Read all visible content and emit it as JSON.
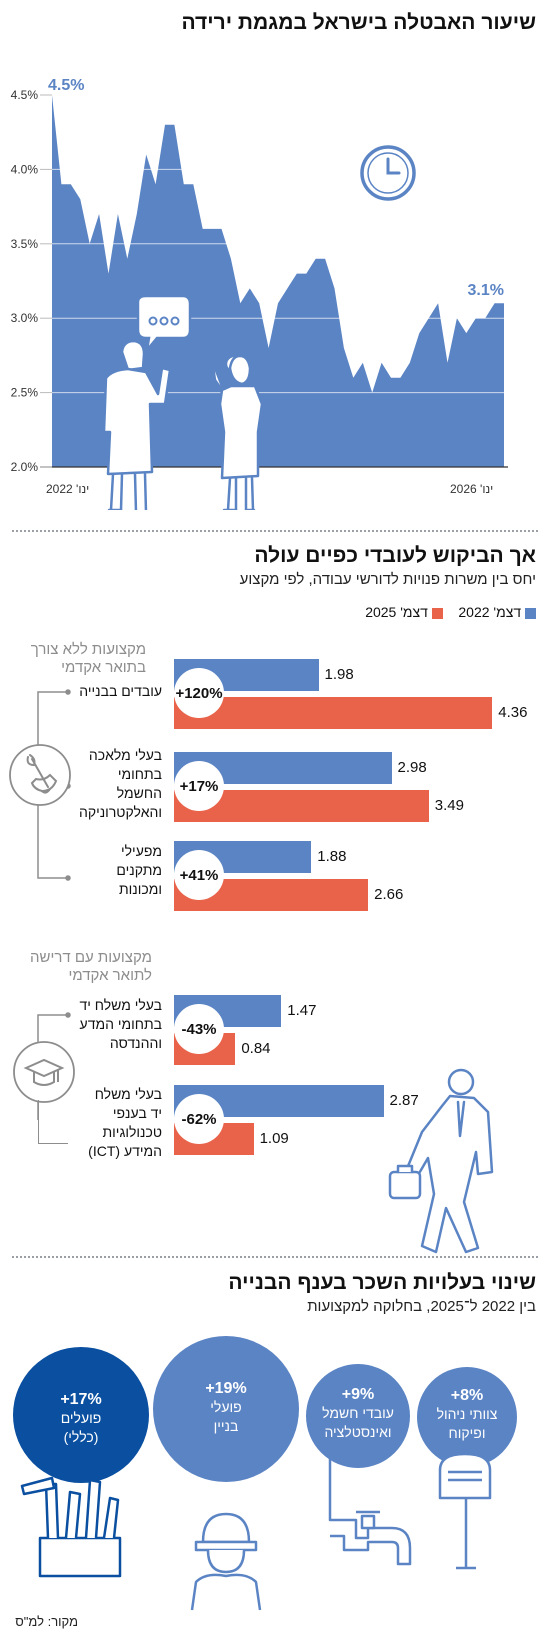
{
  "section1": {
    "title": "שיעור האבטלה בישראל במגמת ירידה",
    "start_label": "4.5%",
    "end_label": "3.1%",
    "x_start": "ינו' 2022",
    "x_end": "ינו' 2026",
    "y_ticks": [
      "4.5%",
      "4.0%",
      "3.5%",
      "3.0%",
      "2.5%",
      "2.0%"
    ]
  },
  "section2": {
    "title": "אך הביקוש לעובדי כפיים עולה",
    "subtitle": "יחס בין משרות פנויות לדורשי עבודה, לפי מקצוע",
    "legend_2022": "דצמ' 2022",
    "legend_2025": "דצמ' 2025",
    "group1_title": [
      "מקצועות ללא צורך",
      "בתואר אקדמי"
    ],
    "group2_title": [
      "מקצועות עם דרישה",
      "לתואר אקדמי"
    ],
    "cat1": [
      "עובדים בבנייה"
    ],
    "cat2": [
      "בעלי מלאכה",
      "בתחומי",
      "החשמל",
      "והאלקטרוניקה"
    ],
    "cat3": [
      "מפעילי",
      "מתקנים",
      "ומכונות"
    ],
    "cat4": [
      "בעלי משלח יד",
      "בתחומי המדע",
      "וההנדסה"
    ],
    "cat5": [
      "בעלי משלח",
      "יד בענפי",
      "טכנולוגיות",
      "המידע (ICT)"
    ]
  },
  "section3": {
    "title": "שינוי בעלויות השכר בענף הבנייה",
    "subtitle": "בין 2022 ל־2025, בחלוקה למקצועות",
    "c1_pct": "+17%",
    "c1_label": [
      "פועלים",
      "(כללי)"
    ],
    "c2_pct": "+19%",
    "c2_label": [
      "פועלי",
      "בניין"
    ],
    "c3_pct": "+9%",
    "c3_label": [
      "עובדי חשמל",
      "ואינסטלציה"
    ],
    "c4_pct": "+8%",
    "c4_label": [
      "צוותי ניהול",
      "ופיקוח"
    ]
  },
  "source": "מקור: למ\"ס",
  "colors": {
    "blue": "#5b84c4",
    "orange": "#e8634a",
    "dark_blue": "#0a4fa0",
    "grey": "#8d8d8d"
  },
  "icons": [
    "clock-icon",
    "speech-bubble-icon",
    "wrench-hand-icon",
    "graduation-cap-icon",
    "tools-box-icon",
    "hardhat-worker-icon",
    "faucet-icon",
    "mailbox-icon"
  ],
  "chart_data": [
    {
      "type": "area",
      "title": "שיעור האבטלה בישראל במגמת ירידה",
      "xlabel": "",
      "ylabel": "",
      "x_range": [
        "ינו' 2022",
        "ינו' 2026"
      ],
      "ylim": [
        2.0,
        4.5
      ],
      "y_ticks": [
        2.0,
        2.5,
        3.0,
        3.5,
        4.0,
        4.5
      ],
      "grid": true,
      "series": [
        {
          "values": [
            4.5,
            3.9,
            3.9,
            3.8,
            3.5,
            3.7,
            3.3,
            3.7,
            3.4,
            3.7,
            4.1,
            3.9,
            4.3,
            4.3,
            3.9,
            3.9,
            3.6,
            3.6,
            3.6,
            3.4,
            3.1,
            3.2,
            3.1,
            2.8,
            3.1,
            3.2,
            3.3,
            3.3,
            3.4,
            3.4,
            3.2,
            2.8,
            2.6,
            2.7,
            2.5,
            2.7,
            2.6,
            2.6,
            2.7,
            2.9,
            3.0,
            3.1,
            2.7,
            3.0,
            2.9,
            3.0,
            3.0,
            3.1,
            3.1
          ]
        }
      ]
    },
    {
      "type": "bar",
      "orientation": "horizontal",
      "title": "אך הביקוש לעובדי כפיים עולה",
      "categories": [
        "עובדים בבנייה",
        "בעלי מלאכה בתחומי החשמל והאלקטרוניקה",
        "מפעילי מתקנים ומכונות",
        "בעלי משלח יד בתחומי המדע וההנדסה",
        "בעלי משלח יד בענפי טכנולוגיות המידע (ICT)"
      ],
      "series": [
        {
          "name": "דצמ' 2022",
          "values": [
            1.98,
            2.98,
            1.88,
            1.47,
            2.87
          ]
        },
        {
          "name": "דצמ' 2025",
          "values": [
            4.36,
            3.49,
            2.66,
            0.84,
            1.09
          ]
        }
      ],
      "value_labels": [
        [
          "1.98",
          "2.98",
          "1.88",
          "1.47",
          "2.87"
        ],
        [
          "4.36",
          "3.49",
          "2.66",
          "0.84",
          "1.09"
        ]
      ],
      "change_labels": [
        "+120%",
        "+17%",
        "+41%",
        "-43%",
        "-62%"
      ],
      "legend": "top-right"
    },
    {
      "type": "bubble",
      "title": "שינוי בעלויות השכר בענף הבנייה",
      "categories": [
        "פועלים (כללי)",
        "פועלי בניין",
        "עובדי חשמל ואינסטלציה",
        "צוותי ניהול ופיקוח"
      ],
      "values": [
        17,
        19,
        9,
        8
      ],
      "value_labels": [
        "+17%",
        "+19%",
        "+9%",
        "+8%"
      ]
    }
  ]
}
